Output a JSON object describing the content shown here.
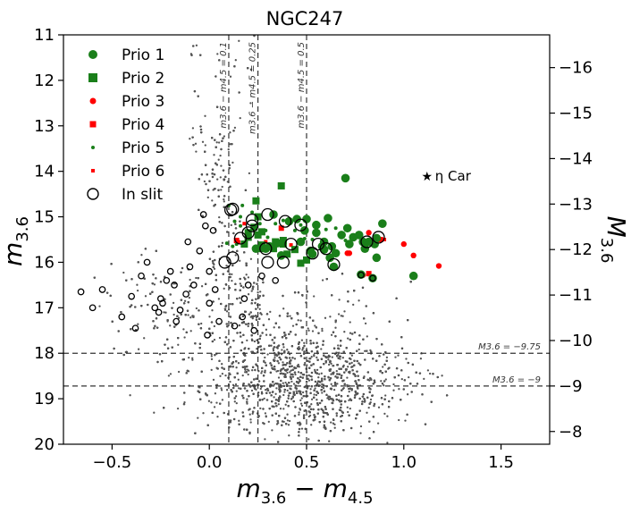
{
  "chart_data": {
    "type": "scatter",
    "title": "NGC247",
    "xlabel_base": "m",
    "xlabel_sub1": "3.6",
    "xlabel_minus": " − m",
    "xlabel_sub2": "4.5",
    "ylabel_base": "m",
    "ylabel_sub": "3.6",
    "y2label_base": "M",
    "y2label_sub": "3.6",
    "xlim": [
      -0.75,
      1.75
    ],
    "ylim": [
      20,
      11
    ],
    "y2lim": [
      -7.72,
      -16.72
    ],
    "x_ticks": [
      -0.5,
      0.0,
      0.5,
      1.0,
      1.5
    ],
    "x_tick_labels": [
      "−0.5",
      "0.0",
      "0.5",
      "1.0",
      "1.5"
    ],
    "y_ticks": [
      11,
      12,
      13,
      14,
      15,
      16,
      17,
      18,
      19,
      20
    ],
    "y_tick_labels": [
      "11",
      "12",
      "13",
      "14",
      "15",
      "16",
      "17",
      "18",
      "19",
      "20"
    ],
    "y2_ticks": [
      -16,
      -15,
      -14,
      -13,
      -12,
      -11,
      -10,
      -9,
      -8
    ],
    "y2_tick_labels": [
      "−16",
      "−15",
      "−14",
      "−13",
      "−12",
      "−11",
      "−10",
      "−9",
      "−8"
    ],
    "colors": {
      "prio_odd": "#1a7f1a",
      "prio_even_red": "#ff0000",
      "background": "#555555",
      "slit": "#000000"
    },
    "legend": {
      "placement": "top-left",
      "entries": [
        {
          "label": "Prio 1",
          "marker": "circle-large",
          "color": "#1a7f1a"
        },
        {
          "label": "Prio 2",
          "marker": "square",
          "color": "#1a7f1a"
        },
        {
          "label": "Prio 3",
          "marker": "circle-small",
          "color": "#ff0000"
        },
        {
          "label": "Prio 4",
          "marker": "square-small",
          "color": "#ff0000"
        },
        {
          "label": "Prio 5",
          "marker": "dot",
          "color": "#1a7f1a"
        },
        {
          "label": "Prio 6",
          "marker": "square-tiny",
          "color": "#ff0000"
        },
        {
          "label": "In slit",
          "marker": "open-circle",
          "color": "#000000"
        }
      ]
    },
    "vlines": [
      {
        "x": 0.1,
        "label": "m3.6 − m4.5 = 0.1"
      },
      {
        "x": 0.25,
        "label": "m3.6 − m4.5 = 0.25"
      },
      {
        "x": 0.5,
        "label": "m3.6 − m4.5 = 0.5"
      }
    ],
    "hlines": [
      {
        "y": 18.0,
        "label": "M3.6 = −9.75"
      },
      {
        "y": 18.72,
        "label": "M3.6 = −9"
      }
    ],
    "annotation": {
      "label": "η Car",
      "x": 1.17,
      "y": 14.1
    },
    "background_cloud": {
      "description": "field sources (gray points)",
      "count_estimate": 6000,
      "core_center": [
        0.5,
        18.7
      ],
      "upper_branch": [
        [
          0.0,
          14.0
        ],
        [
          0.1,
          15.5
        ]
      ]
    },
    "series": [
      {
        "name": "Prio 1",
        "points": [
          [
            0.7,
            14.15
          ],
          [
            0.61,
            15.03
          ],
          [
            0.33,
            14.95
          ],
          [
            0.41,
            15.1
          ],
          [
            0.49,
            15.3
          ],
          [
            0.55,
            15.35
          ],
          [
            0.59,
            15.55
          ],
          [
            0.68,
            15.4
          ],
          [
            0.71,
            15.25
          ],
          [
            0.77,
            15.4
          ],
          [
            0.82,
            15.55
          ],
          [
            0.86,
            15.47
          ],
          [
            0.89,
            15.15
          ],
          [
            0.79,
            15.55
          ],
          [
            0.63,
            15.65
          ],
          [
            0.58,
            15.65
          ],
          [
            0.65,
            15.8
          ],
          [
            0.53,
            15.82
          ],
          [
            0.62,
            15.9
          ],
          [
            0.64,
            16.1
          ],
          [
            0.78,
            16.27
          ],
          [
            0.84,
            16.35
          ],
          [
            0.72,
            15.6
          ],
          [
            0.52,
            15.75
          ],
          [
            1.05,
            16.3
          ],
          [
            0.37,
            15.85
          ],
          [
            0.24,
            15.7
          ],
          [
            0.31,
            15.65
          ],
          [
            0.29,
            15.7
          ],
          [
            0.35,
            15.58
          ],
          [
            0.59,
            15.72
          ],
          [
            0.74,
            15.45
          ],
          [
            0.8,
            15.7
          ],
          [
            0.86,
            15.9
          ],
          [
            0.45,
            15.05
          ],
          [
            0.5,
            15.05
          ],
          [
            0.55,
            15.18
          ],
          [
            0.85,
            15.6
          ],
          [
            0.47,
            15.55
          ]
        ]
      },
      {
        "name": "Prio 2",
        "points": [
          [
            0.37,
            14.32
          ],
          [
            0.24,
            14.65
          ],
          [
            0.25,
            15.0
          ],
          [
            0.23,
            15.23
          ],
          [
            0.2,
            15.45
          ],
          [
            0.25,
            15.4
          ],
          [
            0.27,
            15.33
          ],
          [
            0.27,
            15.62
          ],
          [
            0.38,
            15.6
          ],
          [
            0.4,
            15.82
          ],
          [
            0.38,
            15.52
          ],
          [
            0.44,
            15.72
          ],
          [
            0.5,
            15.95
          ],
          [
            0.47,
            16.02
          ],
          [
            0.33,
            15.7
          ],
          [
            0.26,
            15.7
          ],
          [
            0.18,
            15.6
          ],
          [
            0.2,
            15.35
          ],
          [
            0.34,
            15.55
          ]
        ]
      },
      {
        "name": "Prio 3",
        "points": [
          [
            0.82,
            15.35
          ],
          [
            1.0,
            15.6
          ],
          [
            1.05,
            15.85
          ],
          [
            1.18,
            16.08
          ],
          [
            0.85,
            15.5
          ],
          [
            0.72,
            15.8
          ],
          [
            0.79,
            16.28
          ],
          [
            0.71,
            15.8
          ]
        ]
      },
      {
        "name": "Prio 4",
        "points": [
          [
            0.37,
            15.25
          ],
          [
            0.14,
            15.52
          ],
          [
            0.88,
            15.5
          ],
          [
            0.82,
            16.25
          ],
          [
            0.28,
            15.7
          ]
        ]
      },
      {
        "name": "Prio 5",
        "points": [
          [
            0.1,
            14.75
          ],
          [
            0.13,
            15.1
          ],
          [
            0.16,
            15.2
          ],
          [
            0.17,
            14.75
          ],
          [
            0.22,
            14.9
          ],
          [
            0.26,
            15.15
          ],
          [
            0.19,
            15.48
          ],
          [
            0.14,
            15.6
          ],
          [
            0.12,
            15.65
          ],
          [
            0.09,
            15.58
          ],
          [
            0.29,
            15.3
          ],
          [
            0.34,
            15.15
          ],
          [
            0.38,
            15.08
          ],
          [
            0.44,
            15.3
          ],
          [
            0.47,
            15.18
          ],
          [
            0.49,
            15.48
          ],
          [
            0.56,
            15.2
          ],
          [
            0.6,
            15.28
          ],
          [
            0.65,
            15.25
          ],
          [
            0.53,
            15.5
          ],
          [
            0.7,
            15.52
          ],
          [
            0.3,
            15.45
          ],
          [
            0.16,
            15.0
          ]
        ]
      },
      {
        "name": "Prio 6",
        "points": [
          [
            0.18,
            15.15
          ],
          [
            0.15,
            15.55
          ],
          [
            0.56,
            15.35
          ],
          [
            0.9,
            15.5
          ],
          [
            0.42,
            15.62
          ],
          [
            0.29,
            15.55
          ]
        ]
      },
      {
        "name": "In slit",
        "points": [
          [
            0.11,
            14.85
          ],
          [
            0.22,
            15.07
          ],
          [
            0.3,
            14.95
          ],
          [
            0.39,
            15.1
          ],
          [
            0.47,
            15.18
          ],
          [
            0.29,
            15.7
          ],
          [
            0.53,
            15.8
          ],
          [
            0.6,
            15.7
          ],
          [
            0.64,
            16.05
          ],
          [
            0.78,
            16.28
          ],
          [
            0.84,
            16.35
          ],
          [
            0.81,
            15.55
          ],
          [
            0.87,
            15.45
          ],
          [
            0.2,
            15.35
          ],
          [
            0.16,
            15.47
          ],
          [
            0.22,
            15.2
          ],
          [
            0.12,
            14.83
          ],
          [
            0.42,
            15.6
          ],
          [
            0.56,
            15.6
          ],
          [
            -0.66,
            16.65
          ],
          [
            -0.55,
            16.6
          ],
          [
            -0.4,
            16.75
          ],
          [
            -0.35,
            16.3
          ],
          [
            -0.32,
            16.0
          ],
          [
            -0.28,
            17.0
          ],
          [
            -0.26,
            17.1
          ],
          [
            -0.24,
            16.9
          ],
          [
            -0.22,
            16.4
          ],
          [
            -0.2,
            16.2
          ],
          [
            -0.17,
            17.3
          ],
          [
            -0.15,
            17.05
          ],
          [
            -0.12,
            16.7
          ],
          [
            -0.08,
            16.5
          ],
          [
            -0.1,
            16.1
          ],
          [
            -0.05,
            15.75
          ],
          [
            -0.02,
            15.2
          ],
          [
            0.02,
            15.3
          ],
          [
            -0.11,
            15.55
          ],
          [
            -0.03,
            14.95
          ],
          [
            0.0,
            16.9
          ],
          [
            0.03,
            16.6
          ],
          [
            -0.01,
            17.6
          ],
          [
            0.05,
            17.3
          ],
          [
            0.13,
            17.4
          ],
          [
            0.18,
            16.8
          ],
          [
            0.2,
            16.5
          ],
          [
            0.27,
            16.3
          ],
          [
            0.3,
            16.0
          ],
          [
            0.34,
            16.4
          ],
          [
            0.38,
            16.0
          ],
          [
            0.17,
            17.2
          ],
          [
            0.23,
            17.5
          ],
          [
            -0.6,
            17.0
          ],
          [
            -0.45,
            17.2
          ],
          [
            -0.38,
            17.45
          ],
          [
            0.0,
            16.2
          ],
          [
            0.08,
            16.0
          ],
          [
            0.12,
            15.9
          ],
          [
            -0.18,
            16.5
          ],
          [
            -0.25,
            16.8
          ]
        ]
      }
    ]
  }
}
